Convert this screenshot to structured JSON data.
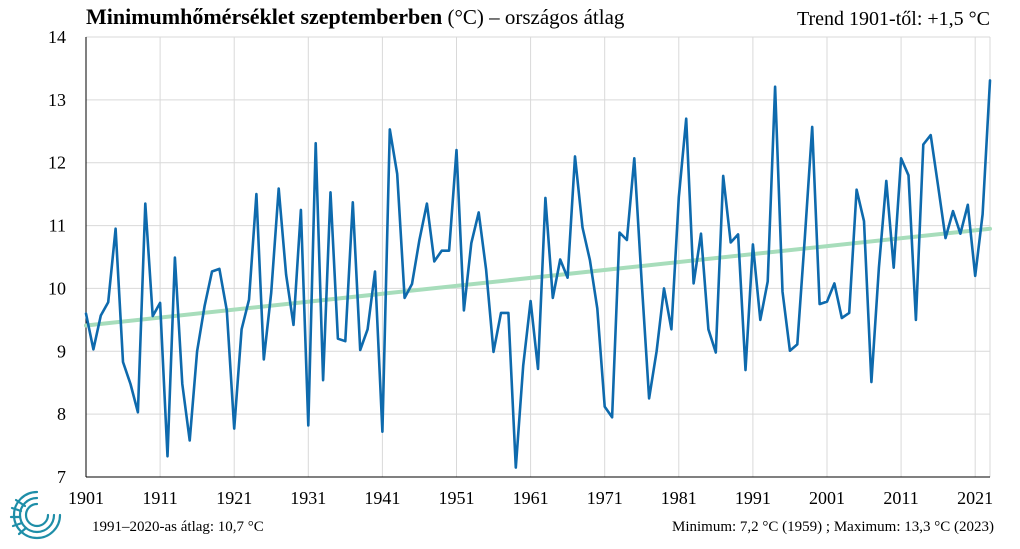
{
  "header": {
    "title_bold": "Minimumhőmérséklet szeptemberben",
    "title_rest": " (°C) – országos átlag",
    "trend": "Trend 1901-től: +1,5 °C"
  },
  "footer": {
    "average": "1991–2020-as átlag:  10,7 °C",
    "minmax": "Minimum:  7,2 °C (1959)  ; Maximum:  13,3 °C (2023)"
  },
  "logo": {
    "icon": "met-service-swirl-logo",
    "color": "#1e8ea8"
  },
  "chart_data": {
    "type": "line",
    "title": "Minimumhőmérséklet szeptemberben (°C) – országos átlag",
    "xlabel": "",
    "ylabel": "",
    "xlim": [
      1901,
      2023
    ],
    "ylim": [
      7,
      14
    ],
    "yticks": [
      7,
      8,
      9,
      10,
      11,
      12,
      13,
      14
    ],
    "xticks": [
      1901,
      1911,
      1921,
      1931,
      1941,
      1951,
      1961,
      1971,
      1981,
      1991,
      2001,
      2011,
      2021
    ],
    "grid": true,
    "series": [
      {
        "name": "",
        "color": "#0e6aad",
        "x": [
          1901,
          1902,
          1903,
          1904,
          1905,
          1906,
          1907,
          1908,
          1909,
          1910,
          1911,
          1912,
          1913,
          1914,
          1915,
          1916,
          1917,
          1918,
          1919,
          1920,
          1921,
          1922,
          1923,
          1924,
          1925,
          1926,
          1927,
          1928,
          1929,
          1930,
          1931,
          1932,
          1933,
          1934,
          1935,
          1936,
          1937,
          1938,
          1939,
          1940,
          1941,
          1942,
          1943,
          1944,
          1945,
          1946,
          1947,
          1948,
          1949,
          1950,
          1951,
          1952,
          1953,
          1954,
          1955,
          1956,
          1957,
          1958,
          1959,
          1960,
          1961,
          1962,
          1963,
          1964,
          1965,
          1966,
          1967,
          1968,
          1969,
          1970,
          1971,
          1972,
          1973,
          1974,
          1975,
          1976,
          1977,
          1978,
          1979,
          1980,
          1981,
          1982,
          1983,
          1984,
          1985,
          1986,
          1987,
          1988,
          1989,
          1990,
          1991,
          1992,
          1993,
          1994,
          1995,
          1996,
          1997,
          1998,
          1999,
          2000,
          2001,
          2002,
          2003,
          2004,
          2005,
          2006,
          2007,
          2008,
          2009,
          2010,
          2011,
          2012,
          2013,
          2014,
          2015,
          2016,
          2017,
          2018,
          2019,
          2020,
          2021,
          2022,
          2023
        ],
        "y": [
          9.6,
          9.03,
          9.57,
          9.78,
          10.95,
          8.83,
          8.48,
          8.03,
          11.35,
          9.56,
          9.77,
          7.33,
          10.49,
          8.48,
          7.58,
          9.0,
          9.72,
          10.27,
          10.31,
          9.65,
          7.77,
          9.35,
          9.82,
          11.5,
          8.87,
          9.93,
          11.59,
          10.22,
          9.42,
          11.25,
          7.82,
          12.31,
          8.54,
          11.53,
          9.2,
          9.16,
          11.37,
          9.02,
          9.35,
          10.27,
          7.72,
          12.53,
          11.82,
          9.85,
          10.07,
          10.77,
          11.35,
          10.43,
          10.6,
          10.6,
          12.2,
          9.65,
          10.72,
          11.21,
          10.3,
          8.99,
          9.61,
          9.61,
          7.15,
          8.77,
          9.8,
          8.72,
          11.44,
          9.85,
          10.46,
          10.17,
          12.1,
          10.97,
          10.45,
          9.68,
          8.12,
          7.95,
          10.89,
          10.77,
          12.07,
          10.1,
          8.25,
          9.0,
          10.0,
          9.35,
          11.45,
          12.7,
          10.08,
          10.87,
          9.35,
          8.98,
          11.79,
          10.73,
          10.86,
          8.7,
          10.7,
          9.5,
          10.11,
          13.21,
          9.95,
          9.01,
          9.11,
          10.8,
          12.57,
          9.75,
          9.79,
          10.08,
          9.53,
          9.61,
          11.57,
          11.07,
          8.51,
          10.33,
          11.71,
          10.33,
          12.07,
          11.8,
          9.5,
          12.29,
          12.44,
          11.63,
          10.8,
          11.23,
          10.87,
          11.33,
          10.2,
          11.18,
          13.31
        ]
      },
      {
        "name": "",
        "color": "#a7ddbb",
        "kind": "trend",
        "x": [
          1901,
          2023
        ],
        "y": [
          9.41,
          10.95
        ]
      }
    ],
    "summary": {
      "average_1991_2020": 10.7,
      "minimum": 7.2,
      "minimum_year": 1959,
      "maximum": 13.3,
      "maximum_year": 2023,
      "trend_since_1901": 1.5
    }
  }
}
